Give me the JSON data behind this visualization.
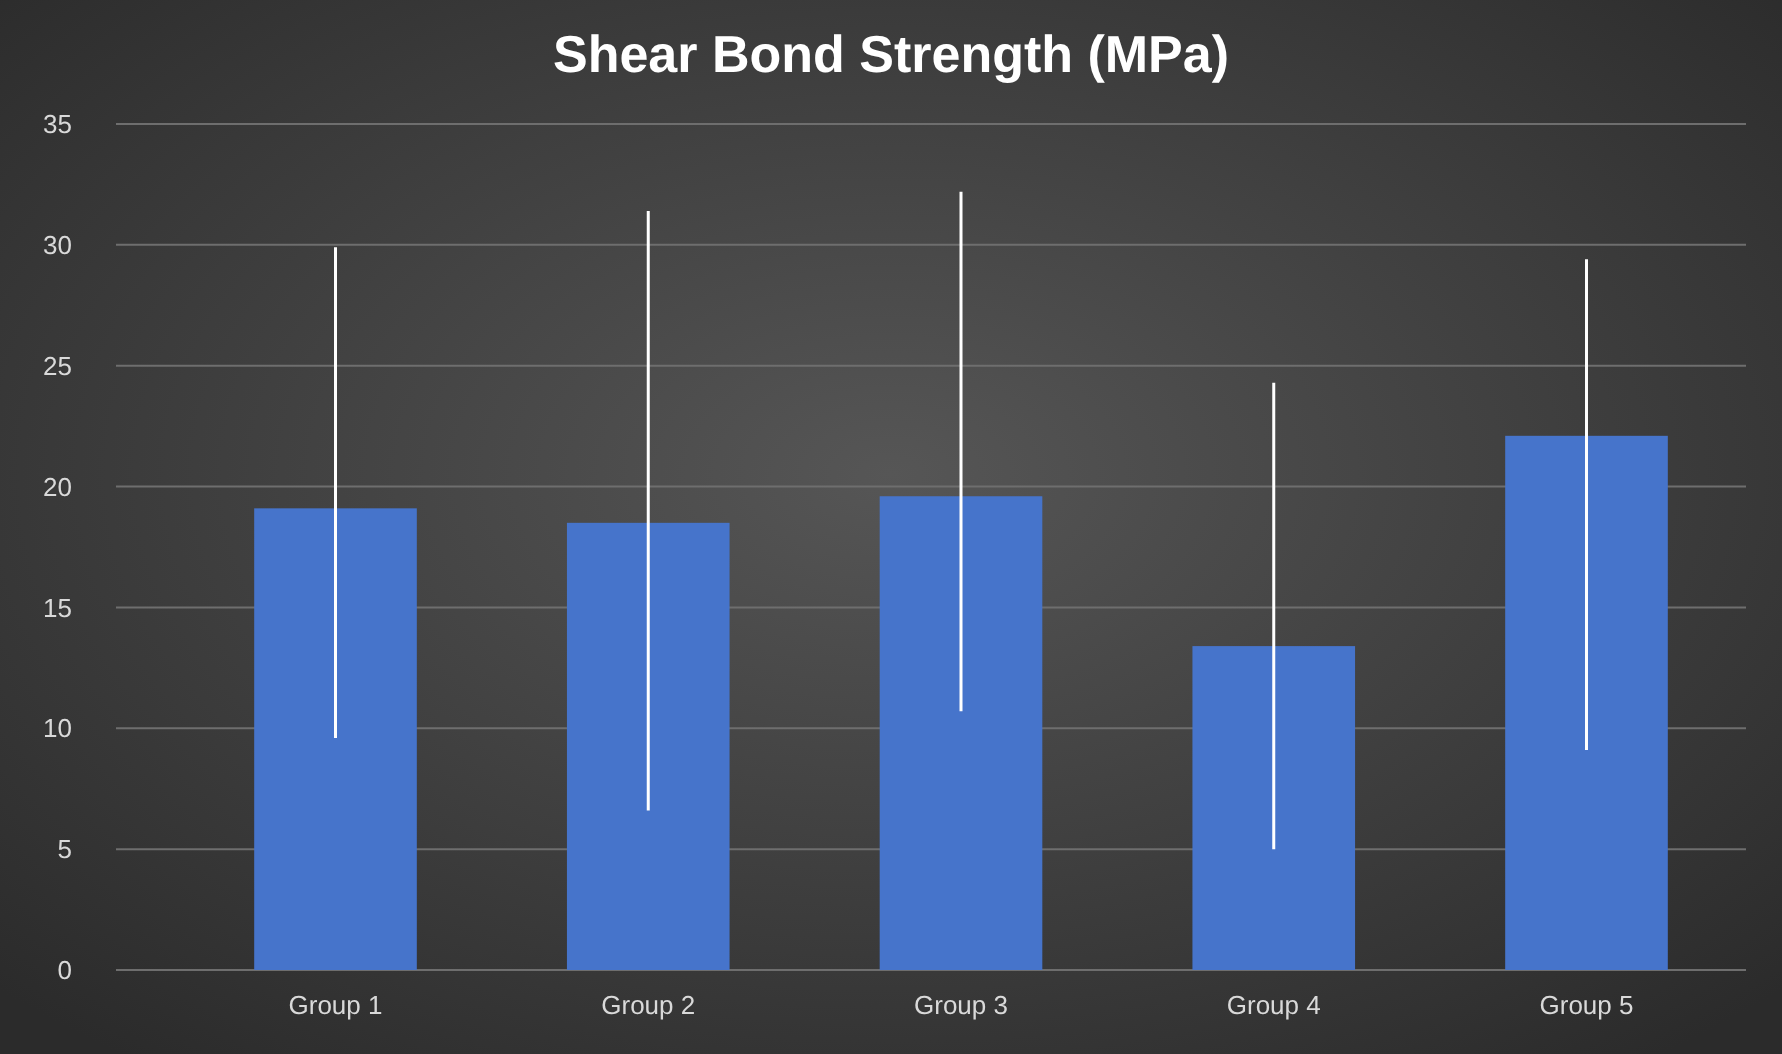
{
  "chart_data": {
    "type": "bar",
    "title": "Shear Bond Strength (MPa)",
    "categories": [
      "Group 1",
      "Group 2",
      "Group 3",
      "Group 4",
      "Group 5"
    ],
    "values": [
      19.1,
      18.5,
      19.6,
      13.4,
      22.1
    ],
    "errors": [
      [
        9.6,
        29.9
      ],
      [
        6.6,
        31.4
      ],
      [
        10.7,
        32.2
      ],
      [
        5.0,
        24.3
      ],
      [
        9.1,
        29.4
      ]
    ],
    "color": "#4674cb",
    "ylim": [
      0,
      35
    ],
    "yticks": [
      0,
      5,
      10,
      15,
      20,
      25,
      30,
      35
    ],
    "grid": "y"
  }
}
